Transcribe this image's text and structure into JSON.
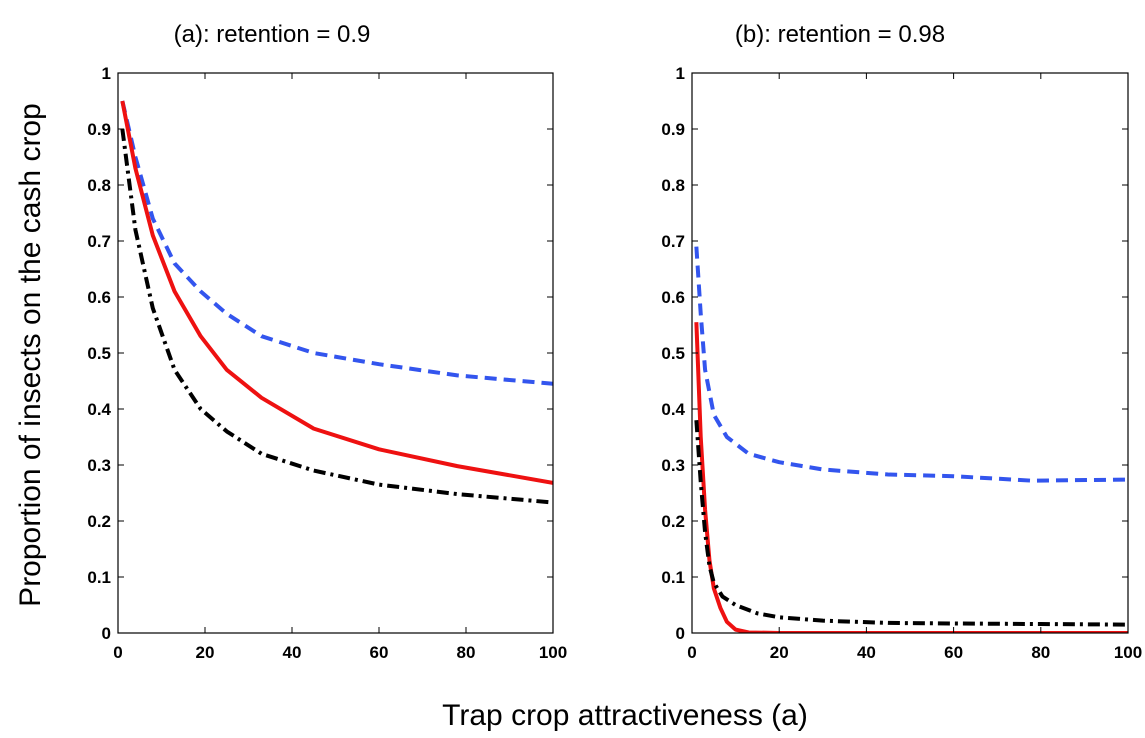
{
  "figure": {
    "xlabel": "Trap crop attractiveness (a)",
    "ylabel": "Proportion of insects on the cash crop"
  },
  "chart_data": [
    {
      "type": "line",
      "title": "(a): retention = 0.9",
      "xlim": [
        0,
        100
      ],
      "ylim": [
        0,
        1
      ],
      "xticks": [
        "0",
        "20",
        "40",
        "60",
        "80",
        "100"
      ],
      "yticks": [
        "0",
        "0.1",
        "0.2",
        "0.3",
        "0.4",
        "0.5",
        "0.6",
        "0.7",
        "0.8",
        "0.9",
        "1"
      ],
      "grid": false,
      "series": [
        {
          "style": "dashed",
          "color": "#3355ee",
          "points": [
            [
              1,
              0.95
            ],
            [
              4,
              0.85
            ],
            [
              8,
              0.74
            ],
            [
              13,
              0.66
            ],
            [
              19,
              0.61
            ],
            [
              25,
              0.57
            ],
            [
              33,
              0.53
            ],
            [
              45,
              0.5
            ],
            [
              60,
              0.48
            ],
            [
              78,
              0.46
            ],
            [
              100,
              0.445
            ]
          ]
        },
        {
          "style": "solid",
          "color": "#ee1111",
          "points": [
            [
              1,
              0.95
            ],
            [
              4,
              0.83
            ],
            [
              8,
              0.71
            ],
            [
              13,
              0.61
            ],
            [
              19,
              0.53
            ],
            [
              25,
              0.47
            ],
            [
              33,
              0.42
            ],
            [
              45,
              0.365
            ],
            [
              60,
              0.328
            ],
            [
              78,
              0.298
            ],
            [
              100,
              0.268
            ]
          ]
        },
        {
          "style": "dashdot",
          "color": "#000000",
          "points": [
            [
              1,
              0.9
            ],
            [
              4,
              0.72
            ],
            [
              8,
              0.58
            ],
            [
              13,
              0.47
            ],
            [
              19,
              0.4
            ],
            [
              25,
              0.36
            ],
            [
              33,
              0.32
            ],
            [
              45,
              0.29
            ],
            [
              60,
              0.265
            ],
            [
              78,
              0.248
            ],
            [
              100,
              0.233
            ]
          ]
        }
      ]
    },
    {
      "type": "line",
      "title": "(b): retention = 0.98",
      "xlim": [
        0,
        100
      ],
      "ylim": [
        0,
        1
      ],
      "xticks": [
        "0",
        "20",
        "40",
        "60",
        "80",
        "100"
      ],
      "yticks": [
        "0",
        "0.1",
        "0.2",
        "0.3",
        "0.4",
        "0.5",
        "0.6",
        "0.7",
        "0.8",
        "0.9",
        "1"
      ],
      "grid": false,
      "series": [
        {
          "style": "dashed",
          "color": "#3355ee",
          "points": [
            [
              1,
              0.69
            ],
            [
              2,
              0.57
            ],
            [
              3,
              0.47
            ],
            [
              5,
              0.39
            ],
            [
              8,
              0.35
            ],
            [
              13,
              0.32
            ],
            [
              20,
              0.305
            ],
            [
              30,
              0.292
            ],
            [
              45,
              0.283
            ],
            [
              60,
              0.28
            ],
            [
              78,
              0.272
            ],
            [
              100,
              0.274
            ]
          ]
        },
        {
          "style": "solid",
          "color": "#ee1111",
          "points": [
            [
              1,
              0.555
            ],
            [
              2,
              0.35
            ],
            [
              3,
              0.22
            ],
            [
              4,
              0.13
            ],
            [
              5,
              0.08
            ],
            [
              6.5,
              0.045
            ],
            [
              8,
              0.02
            ],
            [
              10,
              0.006
            ],
            [
              13,
              0.001
            ],
            [
              20,
              0
            ],
            [
              100,
              0
            ]
          ]
        },
        {
          "style": "dashdot",
          "color": "#000000",
          "points": [
            [
              1,
              0.38
            ],
            [
              2,
              0.27
            ],
            [
              3,
              0.18
            ],
            [
              4,
              0.12
            ],
            [
              5,
              0.09
            ],
            [
              7,
              0.065
            ],
            [
              10,
              0.05
            ],
            [
              15,
              0.035
            ],
            [
              20,
              0.028
            ],
            [
              30,
              0.022
            ],
            [
              45,
              0.018
            ],
            [
              60,
              0.017
            ],
            [
              80,
              0.016
            ],
            [
              100,
              0.015
            ]
          ]
        }
      ]
    }
  ]
}
